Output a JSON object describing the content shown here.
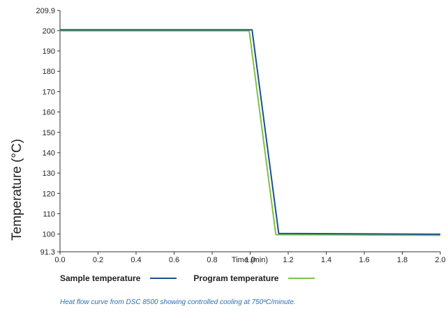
{
  "chart_data": {
    "type": "line",
    "title": "",
    "xlabel": "Time (min)",
    "ylabel": "Temperature (°C)",
    "xlim": [
      0.0,
      2.0
    ],
    "ylim": [
      91.3,
      209.9
    ],
    "x_ticks": [
      "0.0",
      "0.2",
      "0.4",
      "0.6",
      "0.8",
      "1.0",
      "1.2",
      "1.4",
      "1.6",
      "1.8",
      "2.0"
    ],
    "y_ticks": [
      "91.3",
      "100",
      "110",
      "120",
      "130",
      "140",
      "150",
      "160",
      "170",
      "180",
      "190",
      "200",
      "209.9"
    ],
    "grid": false,
    "legend_position": "bottom-left",
    "series": [
      {
        "name": "Sample temperature",
        "color": "#1d4f91",
        "x": [
          0.0,
          1.01,
          1.15,
          2.0
        ],
        "y": [
          200.4,
          200.4,
          100.3,
          99.9
        ]
      },
      {
        "name": "Program temperature",
        "color": "#7dc242",
        "x": [
          0.0,
          0.995,
          1.135,
          2.0
        ],
        "y": [
          199.9,
          199.9,
          99.7,
          99.4
        ]
      }
    ]
  },
  "caption": "Heat flow curve from DSC 8500 showing controlled cooling at 750ºC/minute."
}
